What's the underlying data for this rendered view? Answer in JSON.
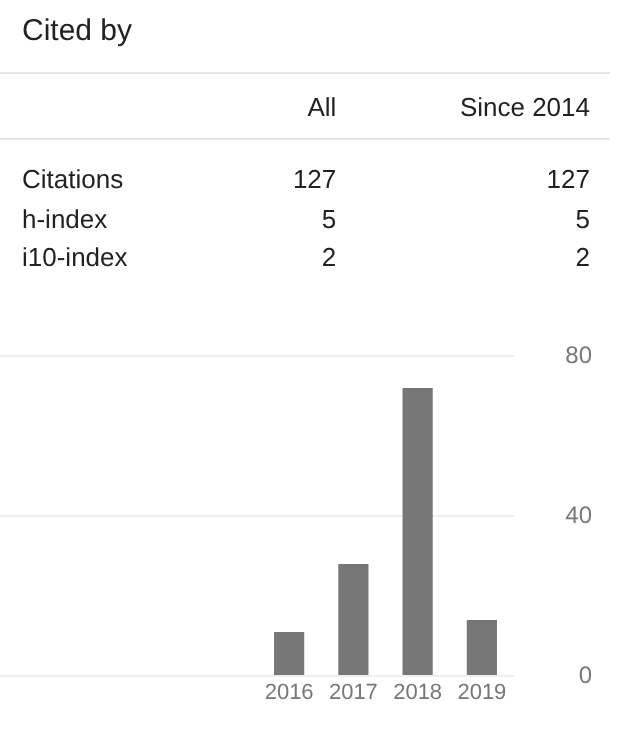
{
  "chart_data": [
    {
      "type": "other",
      "title": "Cited by",
      "categories": [
        "All",
        "Since 2014"
      ],
      "y_categories": [
        "Citations",
        "h-index",
        "i10-index"
      ],
      "cell_labels": [
        [
          "127",
          "127"
        ],
        [
          "5",
          "5"
        ],
        [
          "2",
          "2"
        ]
      ]
    },
    {
      "type": "bar",
      "categories": [
        null,
        null,
        null,
        null,
        "2016",
        "2017",
        "2018",
        "2019"
      ],
      "values": [
        null,
        null,
        null,
        null,
        11,
        28,
        72,
        14
      ],
      "color": "#777777",
      "ylim": [
        0,
        80
      ],
      "yticks": [
        0,
        40,
        80
      ],
      "grid": "y"
    }
  ]
}
